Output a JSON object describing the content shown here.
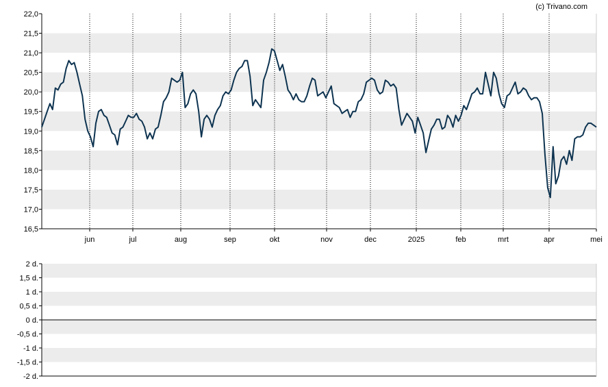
{
  "copyright": "(c) Trivano.com",
  "colors": {
    "line": "#0d3350",
    "band": "#ececec",
    "background": "#ffffff",
    "axis": "#000000"
  },
  "chart_data": [
    {
      "type": "line",
      "ylim": [
        16.5,
        22.0
      ],
      "y_ticks": [
        "22,0",
        "21,5",
        "21,0",
        "20,5",
        "20,0",
        "19,5",
        "19,0",
        "18,5",
        "18,0",
        "17,5",
        "17,0",
        "16,5"
      ],
      "x_ticks": [
        "jun",
        "jul",
        "aug",
        "sep",
        "okt",
        "nov",
        "dec",
        "2025",
        "feb",
        "mrt",
        "apr",
        "mei"
      ],
      "grid": "vertical dotted lines at month ticks, alternating horizontal bands",
      "series": [
        {
          "values": [
            19.1,
            19.3,
            19.5,
            19.7,
            19.55,
            20.1,
            20.05,
            20.2,
            20.25,
            20.6,
            20.8,
            20.7,
            20.75,
            20.5,
            20.2,
            19.9,
            19.3,
            19.0,
            18.85,
            18.6,
            19.2,
            19.5,
            19.55,
            19.4,
            19.35,
            19.15,
            18.95,
            18.9,
            18.65,
            19.05,
            19.1,
            19.25,
            19.4,
            19.35,
            19.35,
            19.45,
            19.3,
            19.25,
            19.1,
            18.8,
            18.95,
            18.8,
            19.05,
            19.1,
            19.4,
            19.75,
            19.85,
            20.0,
            20.35,
            20.3,
            20.25,
            20.3,
            20.5,
            19.6,
            19.7,
            19.95,
            20.05,
            19.95,
            19.5,
            18.85,
            19.3,
            19.4,
            19.3,
            19.1,
            19.4,
            19.55,
            19.65,
            19.9,
            20.0,
            19.95,
            20.05,
            20.3,
            20.5,
            20.6,
            20.65,
            20.8,
            20.8,
            20.4,
            19.65,
            19.8,
            19.7,
            19.6,
            20.3,
            20.5,
            20.75,
            21.1,
            21.05,
            20.8,
            20.55,
            20.7,
            20.4,
            20.05,
            19.95,
            19.8,
            19.95,
            19.8,
            19.75,
            19.75,
            19.9,
            20.15,
            20.35,
            20.3,
            19.9,
            19.95,
            20.0,
            19.85,
            20.0,
            20.15,
            19.7,
            19.65,
            19.6,
            19.45,
            19.5,
            19.55,
            19.35,
            19.5,
            19.5,
            19.75,
            19.8,
            19.95,
            20.25,
            20.3,
            20.35,
            20.3,
            20.05,
            19.95,
            20.0,
            20.3,
            20.25,
            20.15,
            20.2,
            20.1,
            19.55,
            19.15,
            19.3,
            19.45,
            19.35,
            19.25,
            18.95,
            19.35,
            19.15,
            18.95,
            18.45,
            18.75,
            19.05,
            19.15,
            19.3,
            19.3,
            19.05,
            19.1,
            19.4,
            19.3,
            19.1,
            19.4,
            19.25,
            19.4,
            19.65,
            19.55,
            19.75,
            19.95,
            20.0,
            20.1,
            19.95,
            19.95,
            20.5,
            20.2,
            19.9,
            20.5,
            20.35,
            19.95,
            19.7,
            19.6,
            19.9,
            19.95,
            20.1,
            20.25,
            19.95,
            20.0,
            20.1,
            20.05,
            19.9,
            19.8,
            19.85,
            19.85,
            19.75,
            19.45,
            18.4,
            17.55,
            17.3,
            18.6,
            17.65,
            17.85,
            18.25,
            18.35,
            18.15,
            18.5,
            18.25,
            18.8,
            18.85,
            18.85,
            18.9,
            19.1,
            19.2,
            19.2,
            19.15,
            19.1
          ]
        }
      ]
    },
    {
      "type": "line",
      "ylim": [
        -2,
        2
      ],
      "y_ticks": [
        "2 d.",
        "1,5 d.",
        "1 d.",
        "0,5 d.",
        "0 d.",
        "-0,5 d.",
        "-1 d.",
        "-1,5 d.",
        "-2 d."
      ],
      "grid": "alternating horizontal bands, zero line",
      "series": []
    }
  ]
}
